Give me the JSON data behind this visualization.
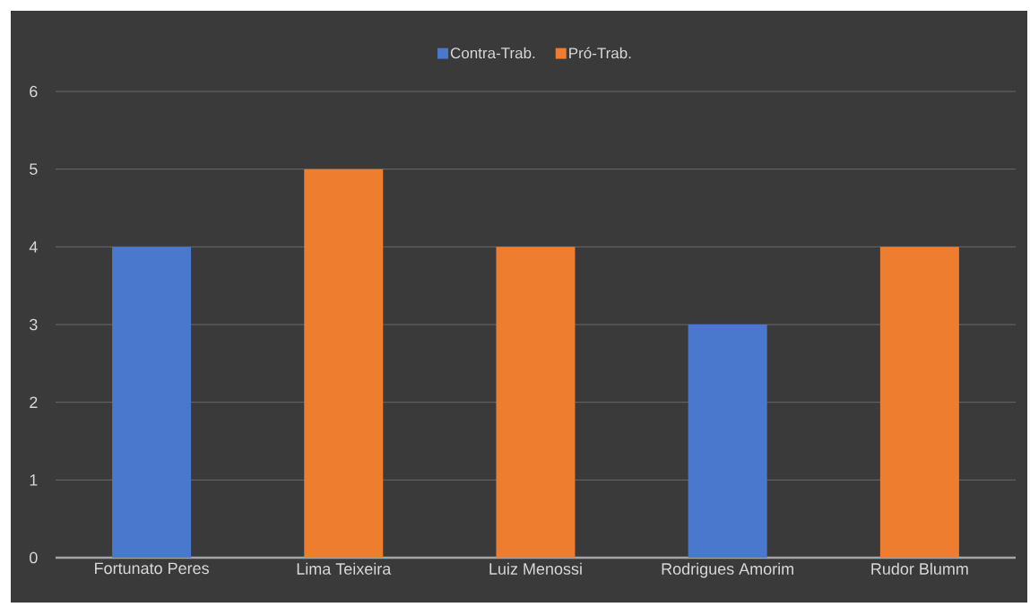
{
  "chart_data": {
    "type": "bar",
    "stacked": true,
    "categories": [
      "Fortunato Peres",
      "Lima Teixeira",
      "Luiz Menossi",
      "Rodrigues Amorim",
      "Rudor Blumm"
    ],
    "series": [
      {
        "name": "Contra-Trab.",
        "color": "#4a78cc",
        "values": [
          4,
          null,
          null,
          3,
          null
        ]
      },
      {
        "name": "Pró-Trab.",
        "color": "#ee7d2f",
        "values": [
          null,
          5,
          4,
          null,
          4
        ]
      }
    ],
    "ylim": [
      0,
      6
    ],
    "yticks": [
      0,
      1,
      2,
      3,
      4,
      5,
      6
    ],
    "grid": "y",
    "legend": "top"
  }
}
